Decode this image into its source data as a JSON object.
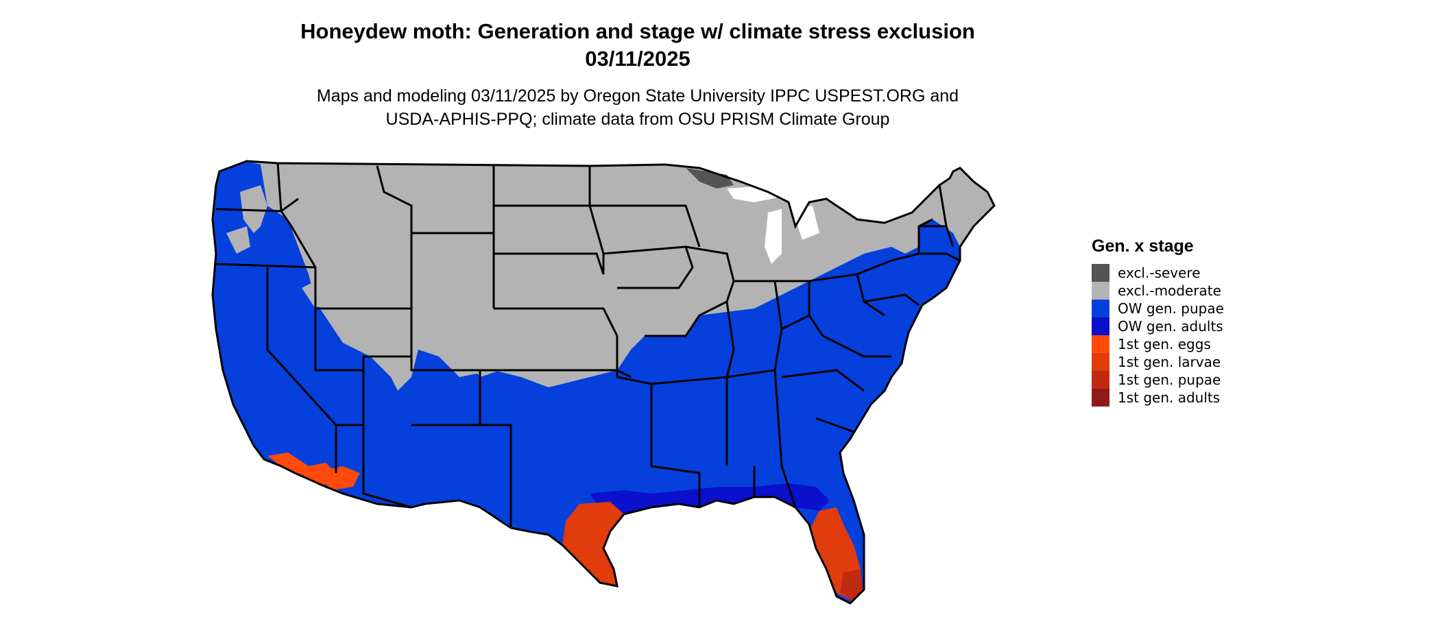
{
  "header": {
    "title_line1": "Honeydew moth: Generation and stage w/ climate stress exclusion",
    "title_line2": "03/11/2025",
    "subtitle_line1": "Maps and modeling 03/11/2025 by Oregon State University IPPC USPEST.ORG and",
    "subtitle_line2": "USDA-APHIS-PPQ; climate data from OSU PRISM Climate Group"
  },
  "legend": {
    "title": "Gen. x stage",
    "items": [
      {
        "label": "excl.-severe",
        "color": "#555555"
      },
      {
        "label": "excl.-moderate",
        "color": "#b3b3b3"
      },
      {
        "label": "OW gen. pupae",
        "color": "#0540dc"
      },
      {
        "label": "OW gen. adults",
        "color": "#0a10cc"
      },
      {
        "label": "1st gen. eggs",
        "color": "#ff4a0a"
      },
      {
        "label": "1st gen. larvae",
        "color": "#e03c0c"
      },
      {
        "label": "1st gen. pupae",
        "color": "#c02a10"
      },
      {
        "label": "1st gen. adults",
        "color": "#901a1a"
      }
    ]
  },
  "map": {
    "colors": {
      "excluded_moderate": "#b3b3b3",
      "excluded_severe": "#555555",
      "ow_pupae": "#0540dc",
      "ow_adults": "#0a10cc",
      "eggs": "#ff4a0a",
      "larvae": "#e03c0c",
      "pupae": "#c02a10",
      "adults": "#901a1a",
      "borders": "#000000"
    }
  }
}
